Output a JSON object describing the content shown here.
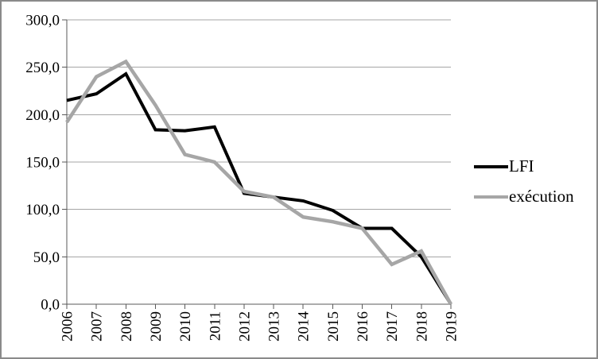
{
  "chart_data": {
    "type": "line",
    "title": "",
    "xlabel": "",
    "ylabel": "",
    "x": [
      "2006",
      "2007",
      "2008",
      "2009",
      "2010",
      "2011",
      "2012",
      "2013",
      "2014",
      "2015",
      "2016",
      "2017",
      "2018",
      "2019"
    ],
    "series": [
      {
        "name": "LFI",
        "color": "#000000",
        "values": [
          215,
          222,
          243,
          184,
          183,
          187,
          117,
          113,
          109,
          99,
          80,
          80,
          50,
          0
        ]
      },
      {
        "name": "exécution",
        "color": "#a6a6a6",
        "values": [
          192,
          240,
          256,
          210,
          158,
          150,
          119,
          113,
          92,
          87,
          80,
          42,
          56,
          0
        ]
      }
    ],
    "ylim": [
      0,
      300
    ],
    "y_ticks": [
      {
        "value": 0,
        "label": "0,0"
      },
      {
        "value": 50,
        "label": "50,0"
      },
      {
        "value": 100,
        "label": "100,0"
      },
      {
        "value": 150,
        "label": "150,0"
      },
      {
        "value": 200,
        "label": "200,0"
      },
      {
        "value": 250,
        "label": "250,0"
      },
      {
        "value": 300,
        "label": "300,0"
      }
    ],
    "grid": true,
    "legend_position": "right",
    "x_label_rotation_degrees": -90
  },
  "legend": {
    "items": [
      {
        "label": "LFI",
        "color": "#000000"
      },
      {
        "label": "exécution",
        "color": "#a6a6a6"
      }
    ]
  },
  "colors": {
    "background": "#ffffff",
    "frame_border": "#8a8a8a",
    "gridline": "#a6a6a6",
    "axis": "#595959",
    "text": "#000000"
  }
}
